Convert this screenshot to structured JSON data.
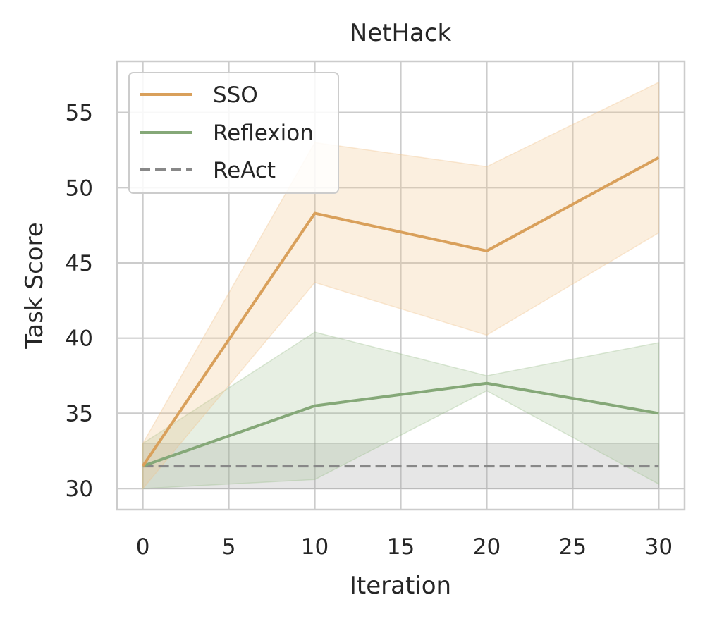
{
  "chart_data": {
    "type": "line",
    "title": "NetHack",
    "xlabel": "Iteration",
    "ylabel": "Task Score",
    "xlim": [
      -1.5,
      31.5
    ],
    "ylim": [
      28.6,
      58.4
    ],
    "xticks": [
      0,
      5,
      10,
      15,
      20,
      25,
      30
    ],
    "yticks": [
      30,
      35,
      40,
      45,
      50,
      55
    ],
    "grid": true,
    "legend_position": "top-left",
    "series": [
      {
        "name": "SSO",
        "color": "#d9a05b",
        "style": "solid",
        "x": [
          0,
          10,
          20,
          30
        ],
        "y": [
          31.5,
          48.3,
          45.8,
          52.0
        ],
        "lower": [
          30.0,
          43.7,
          40.2,
          47.0
        ],
        "upper": [
          33.0,
          53.0,
          51.4,
          57.0
        ]
      },
      {
        "name": "Reflexion",
        "color": "#85a878",
        "style": "solid",
        "x": [
          0,
          10,
          20,
          30
        ],
        "y": [
          31.5,
          35.5,
          37.0,
          35.0
        ],
        "lower": [
          30.0,
          30.6,
          36.5,
          30.3
        ],
        "upper": [
          33.0,
          40.4,
          37.5,
          39.7
        ]
      },
      {
        "name": "ReAct",
        "color": "#888888",
        "style": "dashed",
        "x": [
          0,
          30
        ],
        "y": [
          31.5,
          31.5
        ],
        "lower": [
          30.0,
          30.0
        ],
        "upper": [
          33.0,
          33.0
        ]
      }
    ]
  }
}
